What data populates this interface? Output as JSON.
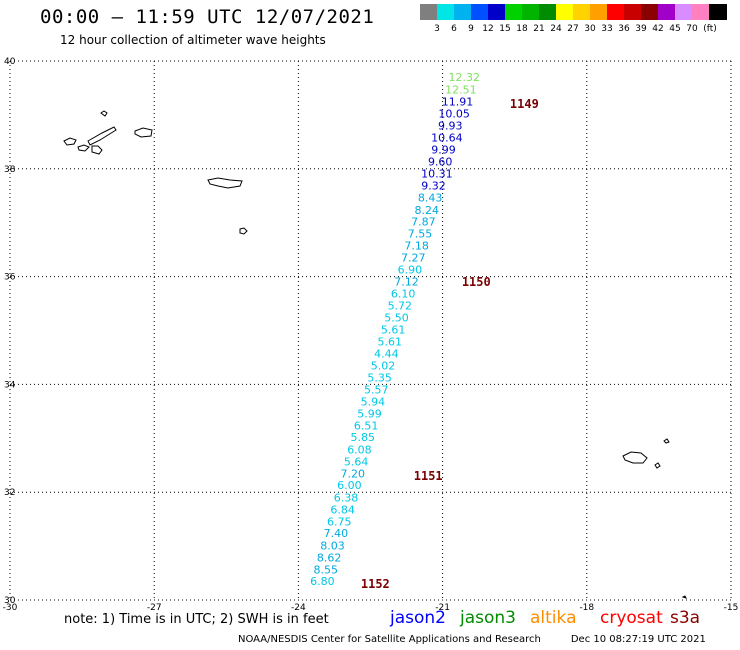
{
  "header": {
    "title": "00:00 – 11:59 UTC 12/07/2021",
    "subtitle": "12 hour collection of altimeter wave heights"
  },
  "scale": {
    "unit": "(ft)",
    "bins": [
      {
        "label": "",
        "color": "#7f7f7f"
      },
      {
        "label": "3",
        "color": "#00e5e5"
      },
      {
        "label": "6",
        "color": "#00b2ee"
      },
      {
        "label": "9",
        "color": "#0050ff"
      },
      {
        "label": "12",
        "color": "#0000c8"
      },
      {
        "label": "15",
        "color": "#00d200"
      },
      {
        "label": "18",
        "color": "#00b400"
      },
      {
        "label": "21",
        "color": "#008c00"
      },
      {
        "label": "24",
        "color": "#ffff00"
      },
      {
        "label": "27",
        "color": "#ffd200"
      },
      {
        "label": "30",
        "color": "#ffa000"
      },
      {
        "label": "33",
        "color": "#ff0000"
      },
      {
        "label": "36",
        "color": "#c80000"
      },
      {
        "label": "39",
        "color": "#8b0000"
      },
      {
        "label": "42",
        "color": "#a000c8"
      },
      {
        "label": "45",
        "color": "#d88cff"
      },
      {
        "label": "70",
        "color": "#ff80c0"
      },
      {
        "label": "",
        "color": "#000000"
      }
    ]
  },
  "axes": {
    "lon_labels": [
      "-30",
      "-27",
      "-24",
      "-21",
      "-18",
      "-15"
    ],
    "lat_labels": [
      "30",
      "32",
      "34",
      "36",
      "38",
      "40"
    ],
    "lon_range": [
      -30,
      -15
    ],
    "lat_range": [
      30,
      40
    ]
  },
  "track": {
    "satellite_color": "#00c8e6",
    "points": [
      {
        "lon": -20.55,
        "lat": 39.7,
        "v": "12.32",
        "color": "#80e060"
      },
      {
        "lon": -20.62,
        "lat": 39.47,
        "v": "12.51",
        "color": "#80e060"
      },
      {
        "lon": -20.69,
        "lat": 39.25,
        "v": "11.91",
        "color": "#0000c8"
      },
      {
        "lon": -20.76,
        "lat": 39.03,
        "v": "10.05",
        "color": "#0000c8"
      },
      {
        "lon": -20.84,
        "lat": 38.8,
        "v": "9.93",
        "color": "#0000c8"
      },
      {
        "lon": -20.91,
        "lat": 38.58,
        "v": "10.64",
        "color": "#0000c8"
      },
      {
        "lon": -20.98,
        "lat": 38.36,
        "v": "9.99",
        "color": "#0000c8"
      },
      {
        "lon": -21.05,
        "lat": 38.14,
        "v": "9.60",
        "color": "#0000c8"
      },
      {
        "lon": -21.12,
        "lat": 37.91,
        "v": "10.31",
        "color": "#0000c8"
      },
      {
        "lon": -21.19,
        "lat": 37.69,
        "v": "9.32",
        "color": "#0000c8"
      },
      {
        "lon": -21.26,
        "lat": 37.47,
        "v": "8.43",
        "color": "#00a8e0"
      },
      {
        "lon": -21.33,
        "lat": 37.24,
        "v": "8.24",
        "color": "#00a8e0"
      },
      {
        "lon": -21.4,
        "lat": 37.02,
        "v": "7.87",
        "color": "#00a8e0"
      },
      {
        "lon": -21.47,
        "lat": 36.8,
        "v": "7.55",
        "color": "#00a8e0"
      },
      {
        "lon": -21.54,
        "lat": 36.58,
        "v": "7.18",
        "color": "#00a8e0"
      },
      {
        "lon": -21.61,
        "lat": 36.35,
        "v": "7.27",
        "color": "#00a8e0"
      },
      {
        "lon": -21.68,
        "lat": 36.13,
        "v": "6.90",
        "color": "#00c8e6"
      },
      {
        "lon": -21.75,
        "lat": 35.91,
        "v": "7.12",
        "color": "#00a8e0"
      },
      {
        "lon": -21.82,
        "lat": 35.69,
        "v": "6.10",
        "color": "#00c8e6"
      },
      {
        "lon": -21.89,
        "lat": 35.46,
        "v": "5.72",
        "color": "#00c8e6"
      },
      {
        "lon": -21.96,
        "lat": 35.24,
        "v": "5.50",
        "color": "#00c8e6"
      },
      {
        "lon": -22.03,
        "lat": 35.02,
        "v": "5.61",
        "color": "#00c8e6"
      },
      {
        "lon": -22.1,
        "lat": 34.8,
        "v": "5.61",
        "color": "#00c8e6"
      },
      {
        "lon": -22.17,
        "lat": 34.57,
        "v": "4.44",
        "color": "#00c8e6"
      },
      {
        "lon": -22.24,
        "lat": 34.35,
        "v": "5.02",
        "color": "#00c8e6"
      },
      {
        "lon": -22.31,
        "lat": 34.13,
        "v": "5.35",
        "color": "#00c8e6"
      },
      {
        "lon": -22.38,
        "lat": 33.91,
        "v": "5.57",
        "color": "#00c8e6"
      },
      {
        "lon": -22.45,
        "lat": 33.68,
        "v": "5.94",
        "color": "#00c8e6"
      },
      {
        "lon": -22.52,
        "lat": 33.46,
        "v": "5.99",
        "color": "#00c8e6"
      },
      {
        "lon": -22.59,
        "lat": 33.24,
        "v": "6.51",
        "color": "#00c8e6"
      },
      {
        "lon": -22.66,
        "lat": 33.02,
        "v": "5.85",
        "color": "#00c8e6"
      },
      {
        "lon": -22.73,
        "lat": 32.79,
        "v": "6.08",
        "color": "#00c8e6"
      },
      {
        "lon": -22.8,
        "lat": 32.57,
        "v": "5.64",
        "color": "#00c8e6"
      },
      {
        "lon": -22.87,
        "lat": 32.35,
        "v": "7.20",
        "color": "#00a8e0"
      },
      {
        "lon": -22.94,
        "lat": 32.13,
        "v": "6.00",
        "color": "#00c8e6"
      },
      {
        "lon": -23.01,
        "lat": 31.9,
        "v": "6.38",
        "color": "#00c8e6"
      },
      {
        "lon": -23.08,
        "lat": 31.68,
        "v": "6.84",
        "color": "#00c8e6"
      },
      {
        "lon": -23.15,
        "lat": 31.46,
        "v": "6.75",
        "color": "#00c8e6"
      },
      {
        "lon": -23.22,
        "lat": 31.24,
        "v": "7.40",
        "color": "#00a8e0"
      },
      {
        "lon": -23.29,
        "lat": 31.01,
        "v": "8.03",
        "color": "#00a8e0"
      },
      {
        "lon": -23.36,
        "lat": 30.79,
        "v": "8.62",
        "color": "#00a8e0"
      },
      {
        "lon": -23.43,
        "lat": 30.57,
        "v": "8.55",
        "color": "#00a8e0"
      },
      {
        "lon": -23.5,
        "lat": 30.35,
        "v": "6.80",
        "color": "#00c8e6"
      }
    ],
    "time_tags": [
      {
        "label": "1149",
        "lon": -19.6,
        "lat": 39.2
      },
      {
        "label": "1150",
        "lon": -20.6,
        "lat": 35.9
      },
      {
        "label": "1151",
        "lon": -21.6,
        "lat": 32.3
      },
      {
        "label": "1152",
        "lon": -22.7,
        "lat": 30.3
      }
    ]
  },
  "note": "note: 1) Time is in UTC; 2) SWH is in feet",
  "satellites": [
    {
      "name": "jason2",
      "color": "#0000ff"
    },
    {
      "name": "jason3",
      "color": "#008c00"
    },
    {
      "name": "altika",
      "color": "#ff8c00"
    },
    {
      "name": "cryosat",
      "color": "#ff0000"
    },
    {
      "name": "s3a",
      "color": "#8b0000"
    }
  ],
  "footer": {
    "source": "NOAA/NESDIS Center for Satellite Applications and Research",
    "timestamp": "Dec 10 08:27:19 UTC 2021"
  }
}
